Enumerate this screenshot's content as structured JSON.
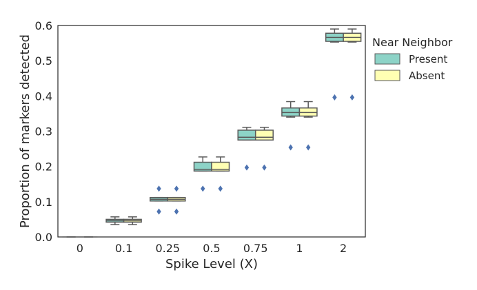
{
  "chart_data": {
    "type": "box",
    "xlabel": "Spike Level (X)",
    "ylabel": "Proportion of markers detected",
    "categories": [
      "0",
      "0.1",
      "0.25",
      "0.5",
      "0.75",
      "1",
      "2"
    ],
    "ylim": [
      0.0,
      0.6
    ],
    "yticks": [
      "0.0",
      "0.1",
      "0.2",
      "0.3",
      "0.4",
      "0.5",
      "0.6"
    ],
    "grid": false,
    "legend": {
      "title": "Near Neighbor",
      "position": "right, outside plot"
    },
    "series": [
      {
        "name": "Present",
        "color": "#8dd3c7",
        "boxes": [
          {
            "whislo": 0.0,
            "q1": 0.0,
            "med": 0.0,
            "q3": 0.0,
            "whishi": 0.0,
            "fliers": []
          },
          {
            "whislo": 0.035,
            "q1": 0.042,
            "med": 0.046,
            "q3": 0.05,
            "whishi": 0.057,
            "fliers": []
          },
          {
            "whislo": 0.102,
            "q1": 0.102,
            "med": 0.107,
            "q3": 0.112,
            "whishi": 0.112,
            "fliers": [
              0.137,
              0.072
            ]
          },
          {
            "whislo": 0.187,
            "q1": 0.187,
            "med": 0.192,
            "q3": 0.212,
            "whishi": 0.227,
            "fliers": [
              0.137
            ]
          },
          {
            "whislo": 0.275,
            "q1": 0.275,
            "med": 0.283,
            "q3": 0.303,
            "whishi": 0.311,
            "fliers": [
              0.197
            ]
          },
          {
            "whislo": 0.34,
            "q1": 0.343,
            "med": 0.353,
            "q3": 0.366,
            "whishi": 0.384,
            "fliers": [
              0.254
            ]
          },
          {
            "whislo": 0.553,
            "q1": 0.555,
            "med": 0.566,
            "q3": 0.578,
            "whishi": 0.59,
            "fliers": [
              0.396
            ]
          }
        ]
      },
      {
        "name": "Absent",
        "color": "#ffffb3",
        "boxes": [
          {
            "whislo": 0.0,
            "q1": 0.0,
            "med": 0.0,
            "q3": 0.0,
            "whishi": 0.0,
            "fliers": []
          },
          {
            "whislo": 0.035,
            "q1": 0.042,
            "med": 0.046,
            "q3": 0.05,
            "whishi": 0.057,
            "fliers": []
          },
          {
            "whislo": 0.102,
            "q1": 0.102,
            "med": 0.107,
            "q3": 0.112,
            "whishi": 0.112,
            "fliers": [
              0.137,
              0.072
            ]
          },
          {
            "whislo": 0.187,
            "q1": 0.187,
            "med": 0.192,
            "q3": 0.212,
            "whishi": 0.227,
            "fliers": [
              0.137
            ]
          },
          {
            "whislo": 0.275,
            "q1": 0.275,
            "med": 0.283,
            "q3": 0.303,
            "whishi": 0.311,
            "fliers": [
              0.197
            ]
          },
          {
            "whislo": 0.34,
            "q1": 0.343,
            "med": 0.353,
            "q3": 0.366,
            "whishi": 0.384,
            "fliers": [
              0.254
            ]
          },
          {
            "whislo": 0.553,
            "q1": 0.555,
            "med": 0.566,
            "q3": 0.578,
            "whishi": 0.59,
            "fliers": [
              0.396
            ]
          }
        ]
      }
    ],
    "colors": {
      "box_edge": "#595959",
      "flier": "#4c72b0",
      "axis": "#262626"
    }
  }
}
